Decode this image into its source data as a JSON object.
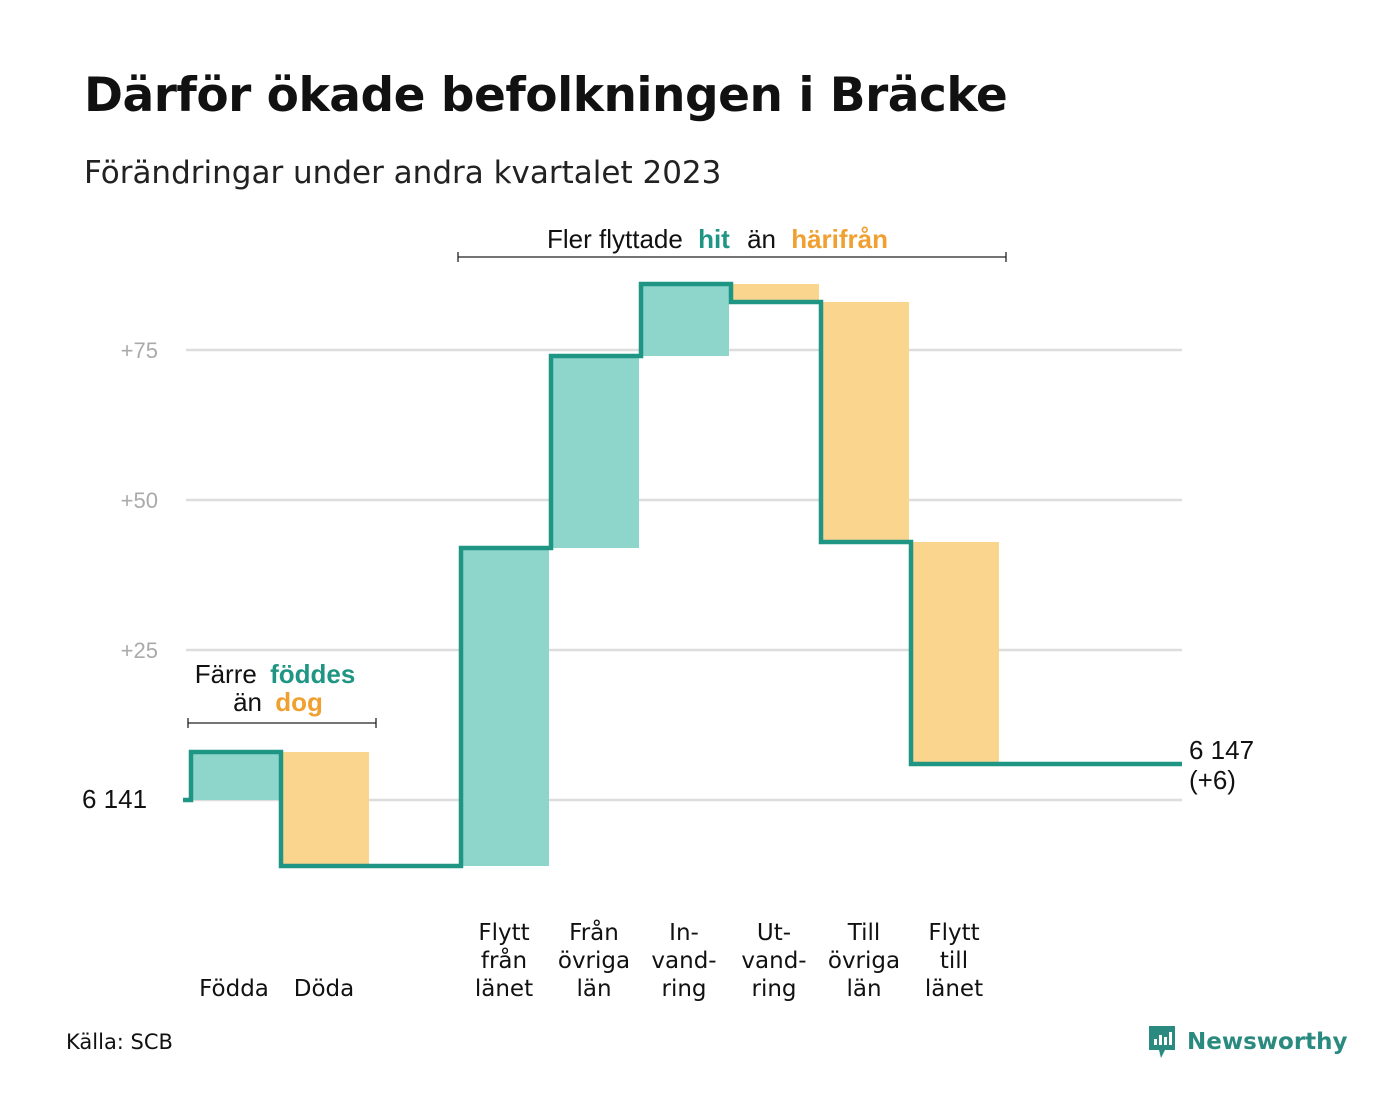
{
  "title": "Därför ökade befolkningen i Bräcke",
  "subtitle": "Förändringar under andra kvartalet 2023",
  "source": "Källa: SCB",
  "brand": "Newsworthy",
  "colors": {
    "increase": "#8ed5cc",
    "decrease": "#fad58e",
    "line": "#1f9583",
    "teal_text": "#1f9583",
    "orange_text": "#f0a030",
    "grid": "#dddddd",
    "tick": "#aaaaaa"
  },
  "annotations": {
    "migration": {
      "prefix": "Fler flyttade",
      "highlight1": "hit",
      "middle": "än",
      "highlight2": "härifrån"
    },
    "natural": {
      "line1_prefix": "Färre",
      "line1_highlight": "föddes",
      "line2_prefix": "än",
      "line2_highlight": "dog"
    }
  },
  "chart_data": {
    "type": "waterfall",
    "title": "Därför ökade befolkningen i Bräcke",
    "subtitle": "Förändringar under andra kvartalet 2023",
    "base_value": 6141,
    "base_label": "6  141",
    "end_label_line1": "6 147",
    "end_label_line2": "(+6)",
    "ylim": [
      -15,
      88
    ],
    "yticks": [
      {
        "value": 25,
        "label": "+25"
      },
      {
        "value": 50,
        "label": "+50"
      },
      {
        "value": 75,
        "label": "+75"
      }
    ],
    "steps": [
      {
        "label_lines": [
          "Födda"
        ],
        "change": 8
      },
      {
        "label_lines": [
          "Döda"
        ],
        "change": -19
      },
      {
        "label_lines": [],
        "change": 0
      },
      {
        "label_lines": [
          "Flytt",
          "från",
          "länet"
        ],
        "change": 53
      },
      {
        "label_lines": [
          "Från",
          "övriga",
          "län"
        ],
        "change": 32
      },
      {
        "label_lines": [
          "In-",
          "vand-",
          "ring"
        ],
        "change": 12
      },
      {
        "label_lines": [
          "Ut-",
          "vand-",
          "ring"
        ],
        "change": -3
      },
      {
        "label_lines": [
          "Till",
          "övriga",
          "län"
        ],
        "change": -40
      },
      {
        "label_lines": [
          "Flytt",
          "till",
          "länet"
        ],
        "change": -37
      }
    ],
    "end_value": 6147,
    "net_change": 6
  }
}
